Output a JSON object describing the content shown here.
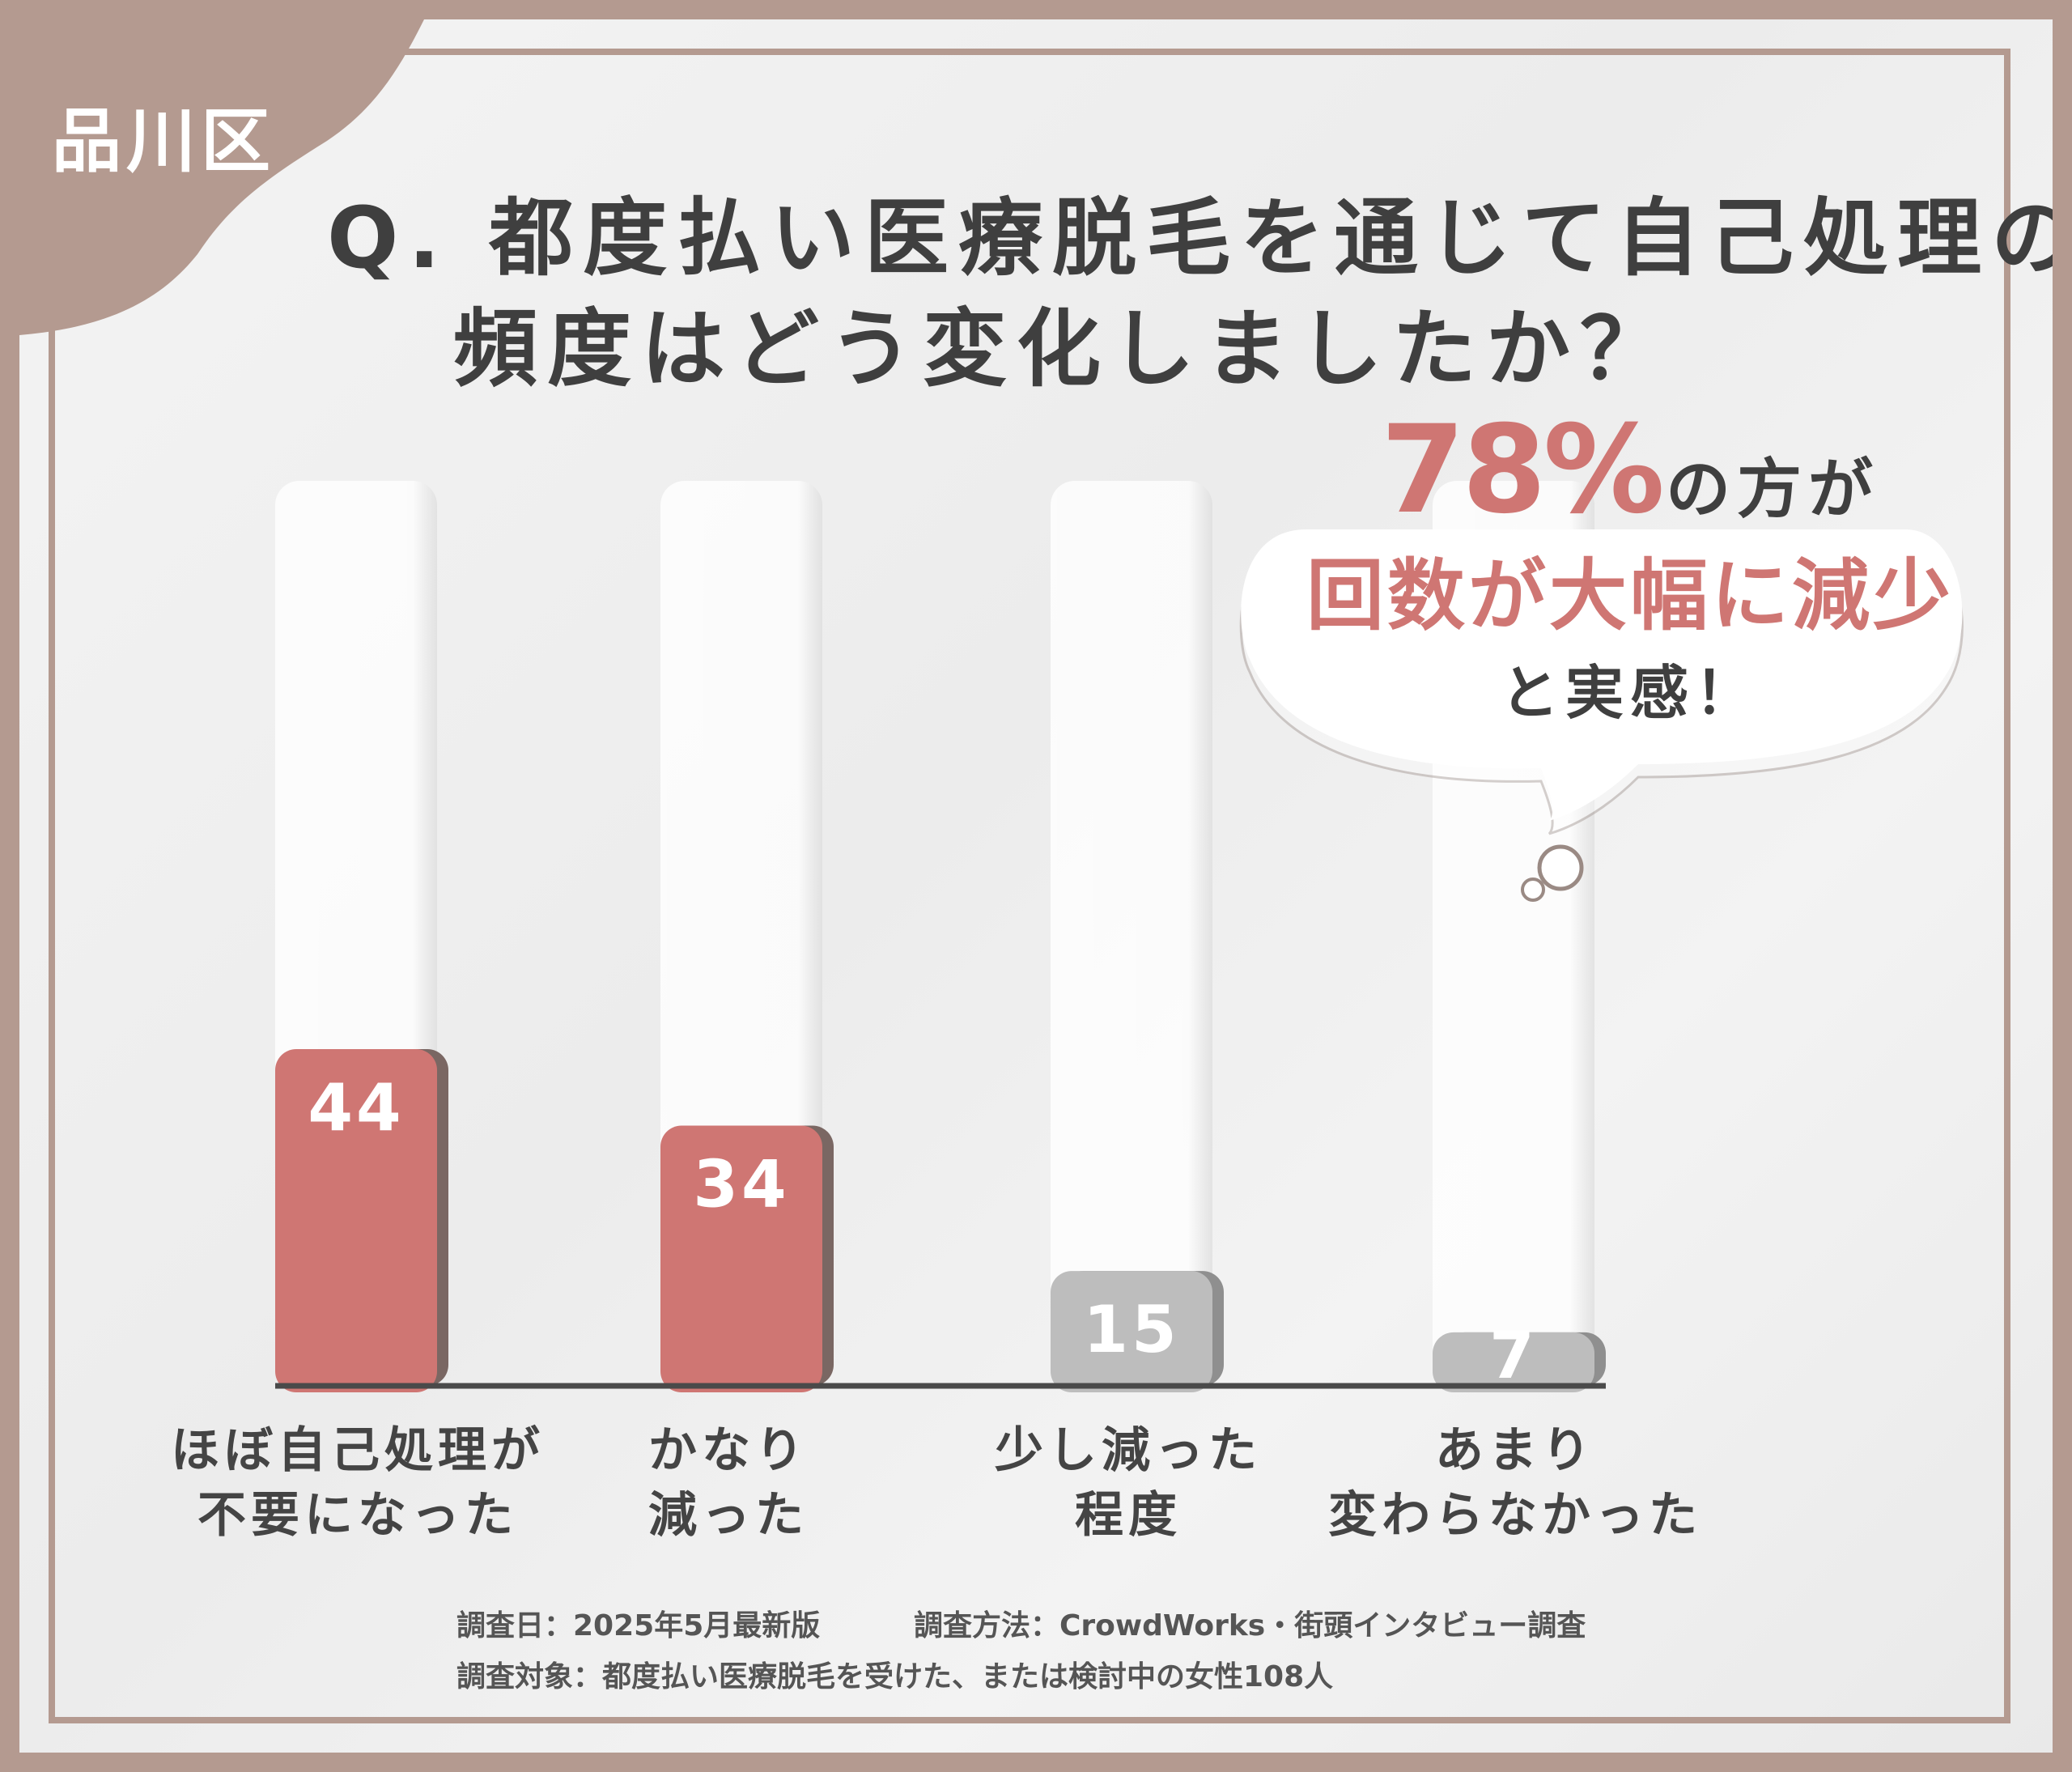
{
  "badge": {
    "district": "品川区"
  },
  "question": {
    "line1": "Q. 都度払い医療脱毛を通じて自己処理の",
    "line2": "頻度はどう変化しましたか？"
  },
  "callout": {
    "percent": "78%",
    "suffix": "の方が",
    "highlight": "回数が大幅に減少",
    "closing": "と実感！"
  },
  "colors": {
    "accent": "#cf7673",
    "muted": "#bdbdbd",
    "frame": "#b49a90",
    "text": "#3f3f3f"
  },
  "chart_data": {
    "type": "bar",
    "categories": [
      [
        "ほぼ自己処理が",
        "不要になった"
      ],
      [
        "かなり",
        "減った"
      ],
      [
        "少し減った",
        "程度"
      ],
      [
        "あまり",
        "変わらなかった"
      ]
    ],
    "values": [
      44,
      34,
      15,
      7
    ],
    "value_labels": [
      "44",
      "34",
      "15",
      "7"
    ],
    "highlighted": [
      true,
      true,
      false,
      false
    ],
    "ylim": [
      0,
      100
    ],
    "title": "",
    "xlabel": "",
    "ylabel": ""
  },
  "footnotes": {
    "date": "調査日：2025年5月最新版",
    "method": "調査方法：CrowdWorks・街頭インタビュー調査",
    "target": "調査対象：都度払い医療脱毛を受けた、または検討中の女性108人"
  }
}
